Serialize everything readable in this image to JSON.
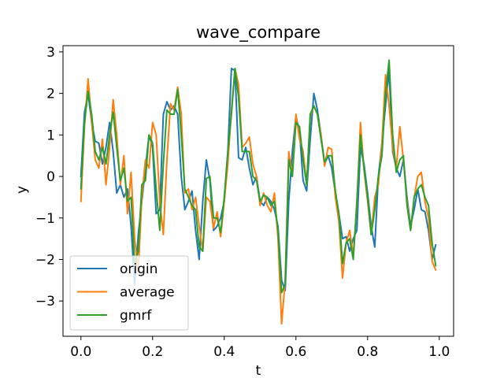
{
  "chart_data": {
    "type": "line",
    "title": "wave_compare",
    "xlabel": "t",
    "ylabel": "y",
    "xlim": [
      -0.05,
      1.04
    ],
    "ylim": [
      -3.85,
      3.15
    ],
    "xticks": [
      0.0,
      0.2,
      0.4,
      0.6,
      0.8,
      1.0
    ],
    "xtick_labels": [
      "0.0",
      "0.2",
      "0.4",
      "0.6",
      "0.8",
      "1.0"
    ],
    "yticks": [
      -3,
      -2,
      -1,
      0,
      1,
      2,
      3
    ],
    "ytick_labels": [
      "−3",
      "−2",
      "−1",
      "0",
      "1",
      "2",
      "3"
    ],
    "grid": false,
    "legend_position": "lower-left",
    "x": [
      0.0,
      0.01,
      0.02,
      0.03,
      0.04,
      0.05,
      0.06,
      0.07,
      0.08,
      0.09,
      0.1,
      0.11,
      0.12,
      0.13,
      0.14,
      0.15,
      0.16,
      0.17,
      0.18,
      0.19,
      0.2,
      0.21,
      0.22,
      0.23,
      0.24,
      0.25,
      0.26,
      0.27,
      0.28,
      0.29,
      0.3,
      0.31,
      0.32,
      0.33,
      0.34,
      0.35,
      0.36,
      0.37,
      0.38,
      0.39,
      0.4,
      0.41,
      0.42,
      0.43,
      0.44,
      0.45,
      0.46,
      0.47,
      0.48,
      0.49,
      0.5,
      0.51,
      0.52,
      0.53,
      0.54,
      0.55,
      0.56,
      0.57,
      0.58,
      0.59,
      0.6,
      0.61,
      0.62,
      0.63,
      0.64,
      0.65,
      0.66,
      0.67,
      0.68,
      0.69,
      0.7,
      0.71,
      0.72,
      0.73,
      0.74,
      0.75,
      0.76,
      0.77,
      0.78,
      0.79,
      0.8,
      0.81,
      0.82,
      0.83,
      0.84,
      0.85,
      0.86,
      0.87,
      0.88,
      0.89,
      0.9,
      0.91,
      0.92,
      0.93,
      0.94,
      0.95,
      0.96,
      0.97,
      0.98,
      0.99
    ],
    "series": [
      {
        "name": "origin",
        "color": "#1f77b4",
        "values": [
          0.0,
          1.55,
          2.0,
          1.3,
          0.85,
          0.8,
          0.3,
          0.7,
          1.3,
          0.6,
          -0.4,
          -0.2,
          -0.5,
          -0.3,
          -1.2,
          -2.6,
          -1.4,
          -0.6,
          0.2,
          1.0,
          0.7,
          -0.9,
          -0.8,
          1.5,
          1.8,
          1.6,
          1.7,
          1.5,
          0.0,
          -0.8,
          -0.6,
          -0.35,
          -1.3,
          -2.0,
          -0.6,
          0.4,
          -0.1,
          -1.3,
          -1.2,
          -1.0,
          -0.6,
          0.6,
          2.6,
          2.55,
          0.45,
          0.4,
          0.7,
          0.2,
          -0.2,
          0.0,
          -0.6,
          -0.7,
          -0.5,
          -0.6,
          -0.8,
          -1.2,
          -2.5,
          -2.75,
          -0.6,
          0.6,
          1.45,
          1.1,
          -0.1,
          -0.35,
          0.9,
          2.0,
          1.6,
          1.0,
          0.3,
          0.5,
          0.2,
          -0.4,
          -0.9,
          -1.5,
          -1.45,
          -1.8,
          -1.5,
          -1.3,
          0.7,
          0.3,
          -0.4,
          -1.2,
          -1.7,
          0.0,
          0.8,
          1.7,
          2.55,
          0.6,
          0.2,
          0.0,
          0.4,
          -0.5,
          -1.2,
          -0.8,
          -0.3,
          -0.8,
          -0.85,
          -1.3,
          -2.0,
          -1.65
        ]
      },
      {
        "name": "average",
        "color": "#ff7f0e",
        "values": [
          -0.6,
          1.2,
          2.35,
          1.3,
          0.4,
          0.2,
          0.9,
          -0.2,
          0.7,
          1.85,
          1.0,
          -0.2,
          0.5,
          -0.9,
          0.1,
          -1.5,
          -2.3,
          -0.5,
          0.4,
          0.2,
          1.3,
          1.0,
          -0.6,
          -1.4,
          0.4,
          1.75,
          1.6,
          2.15,
          1.5,
          -0.4,
          -0.3,
          -0.8,
          -0.5,
          -1.2,
          -1.8,
          -0.5,
          -0.6,
          -1.25,
          -0.85,
          -1.45,
          -0.6,
          0.3,
          1.6,
          2.6,
          2.2,
          0.7,
          0.8,
          0.95,
          0.3,
          0.0,
          -0.7,
          -0.4,
          -0.7,
          -0.85,
          -0.4,
          -1.5,
          -3.55,
          -2.5,
          0.6,
          0.0,
          1.5,
          0.9,
          0.6,
          -0.2,
          1.45,
          1.7,
          1.5,
          1.0,
          0.25,
          0.7,
          0.65,
          -0.5,
          -1.1,
          -2.45,
          -1.6,
          -1.3,
          -1.9,
          -0.7,
          1.3,
          0.15,
          -0.6,
          -1.4,
          -0.5,
          -0.2,
          0.8,
          2.45,
          1.7,
          0.7,
          0.2,
          1.2,
          0.4,
          -0.6,
          -1.3,
          -0.5,
          0.0,
          0.1,
          -0.6,
          -1.0,
          -2.05,
          -2.25
        ]
      },
      {
        "name": "gmrf",
        "color": "#2ca02c",
        "values": [
          -0.3,
          1.3,
          2.05,
          1.5,
          0.6,
          0.4,
          0.7,
          0.3,
          1.0,
          1.55,
          0.7,
          -0.1,
          0.2,
          -0.6,
          -0.5,
          -2.1,
          -1.8,
          -0.2,
          -0.1,
          1.0,
          0.8,
          -0.3,
          -1.3,
          0.3,
          1.6,
          1.5,
          1.5,
          2.1,
          1.0,
          -0.3,
          -0.5,
          -0.7,
          -0.8,
          -1.7,
          -1.8,
          -0.05,
          0.0,
          -1.0,
          -1.0,
          -1.35,
          -0.5,
          0.6,
          1.5,
          2.6,
          1.9,
          0.6,
          0.6,
          0.6,
          0.0,
          -0.1,
          -0.6,
          -0.45,
          -0.5,
          -0.7,
          -0.6,
          -1.3,
          -2.8,
          -2.6,
          0.4,
          0.0,
          1.3,
          1.2,
          0.4,
          -0.2,
          1.5,
          1.7,
          1.5,
          0.9,
          0.35,
          0.5,
          0.5,
          -0.35,
          -0.9,
          -2.1,
          -1.6,
          -1.5,
          -2.0,
          -0.6,
          1.0,
          0.2,
          -0.5,
          -1.4,
          -0.8,
          0.0,
          0.5,
          2.0,
          2.8,
          1.0,
          0.1,
          0.4,
          0.5,
          -0.7,
          -1.3,
          -0.5,
          -0.3,
          -0.2,
          -0.5,
          -0.7,
          -1.6,
          -2.15
        ]
      }
    ]
  }
}
